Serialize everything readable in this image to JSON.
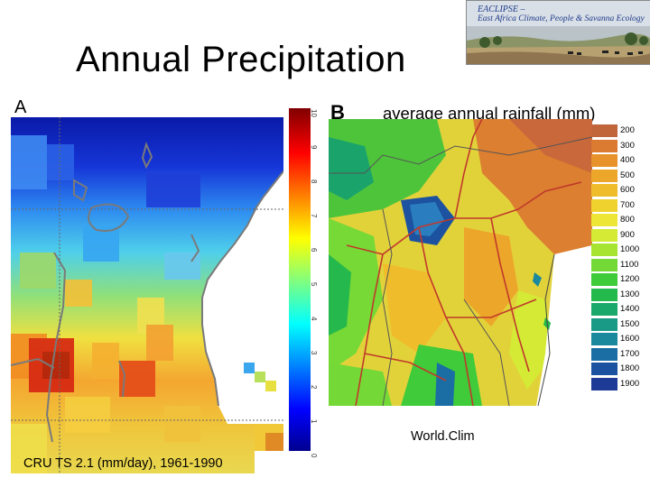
{
  "title": "Annual Precipitation",
  "banner": {
    "line1": "EACLIPSE –",
    "line2": "East Africa Climate, People & Savanna Ecology"
  },
  "panel_a": {
    "letter": "A",
    "caption": "CRU TS 2.1 (mm/day), 1961-1990",
    "colorbar_ticks": [
      "0",
      "1",
      "2",
      "3",
      "4",
      "5",
      "6",
      "7",
      "8",
      "9",
      "10"
    ]
  },
  "panel_b": {
    "letter": "B",
    "title": "average annual rainfall (mm)",
    "caption": "World.Clim",
    "legend": [
      {
        "label": "200",
        "color": "#c1663a"
      },
      {
        "label": "300",
        "color": "#db7b32"
      },
      {
        "label": "400",
        "color": "#e8922c"
      },
      {
        "label": "500",
        "color": "#eca72a"
      },
      {
        "label": "600",
        "color": "#efbd2c"
      },
      {
        "label": "700",
        "color": "#f0d22e"
      },
      {
        "label": "800",
        "color": "#eee637"
      },
      {
        "label": "900",
        "color": "#d4ea35"
      },
      {
        "label": "1000",
        "color": "#a6e431"
      },
      {
        "label": "1100",
        "color": "#74d936"
      },
      {
        "label": "1200",
        "color": "#3fcb3a"
      },
      {
        "label": "1300",
        "color": "#23b94c"
      },
      {
        "label": "1400",
        "color": "#1aa96a"
      },
      {
        "label": "1500",
        "color": "#199a86"
      },
      {
        "label": "1600",
        "color": "#1a889d"
      },
      {
        "label": "1700",
        "color": "#1a6ea4"
      },
      {
        "label": "1800",
        "color": "#1a52a0"
      },
      {
        "label": "1900",
        "color": "#1c3a96"
      }
    ]
  }
}
